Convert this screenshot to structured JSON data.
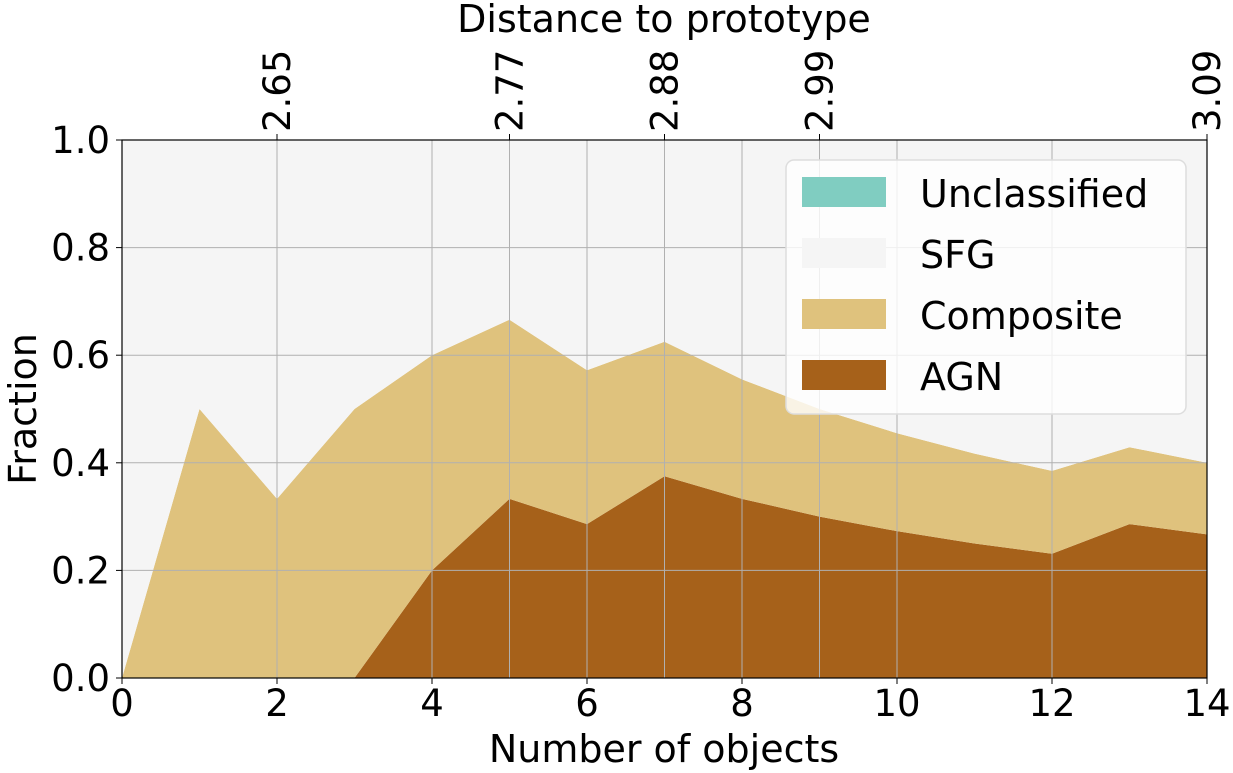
{
  "chart_data": {
    "type": "area",
    "stacked": true,
    "title": "",
    "xlabel": "Number of objects",
    "ylabel": "Fraction",
    "top_xlabel": "Distance to prototype",
    "xlim": [
      0,
      14
    ],
    "ylim": [
      0,
      1
    ],
    "grid": true,
    "x": [
      0,
      1,
      2,
      3,
      4,
      5,
      6,
      7,
      8,
      9,
      10,
      11,
      12,
      13,
      14
    ],
    "xticks": [
      "0",
      "2",
      "4",
      "6",
      "8",
      "10",
      "12",
      "14"
    ],
    "yticks": [
      "0.0",
      "0.2",
      "0.4",
      "0.6",
      "0.8",
      "1.0"
    ],
    "top_ticks": [
      {
        "x": 2,
        "label": "2.65"
      },
      {
        "x": 5,
        "label": "2.77"
      },
      {
        "x": 7,
        "label": "2.88"
      },
      {
        "x": 9,
        "label": "2.99"
      },
      {
        "x": 14,
        "label": "3.09"
      }
    ],
    "series": [
      {
        "name": "AGN",
        "color": "#a6611a",
        "values": [
          0,
          0,
          0,
          0,
          0.2,
          0.333,
          0.286,
          0.375,
          0.333,
          0.3,
          0.273,
          0.25,
          0.231,
          0.286,
          0.267
        ]
      },
      {
        "name": "Composite",
        "color": "#dfc27d",
        "values": [
          0,
          0.5,
          0.333,
          0.5,
          0.4,
          0.333,
          0.286,
          0.25,
          0.222,
          0.2,
          0.182,
          0.167,
          0.154,
          0.143,
          0.133
        ]
      },
      {
        "name": "SFG",
        "color": "#f5f5f5",
        "values": [
          1,
          0.5,
          0.667,
          0.5,
          0.4,
          0.333,
          0.429,
          0.375,
          0.444,
          0.5,
          0.545,
          0.583,
          0.615,
          0.571,
          0.6
        ]
      },
      {
        "name": "Unclassified",
        "color": "#80cdc1",
        "values": [
          0,
          0,
          0,
          0,
          0,
          0,
          0,
          0,
          0,
          0,
          0,
          0,
          0,
          0,
          0
        ]
      }
    ],
    "legend": {
      "placement": "top-right",
      "order": [
        "Unclassified",
        "SFG",
        "Composite",
        "AGN"
      ]
    }
  }
}
